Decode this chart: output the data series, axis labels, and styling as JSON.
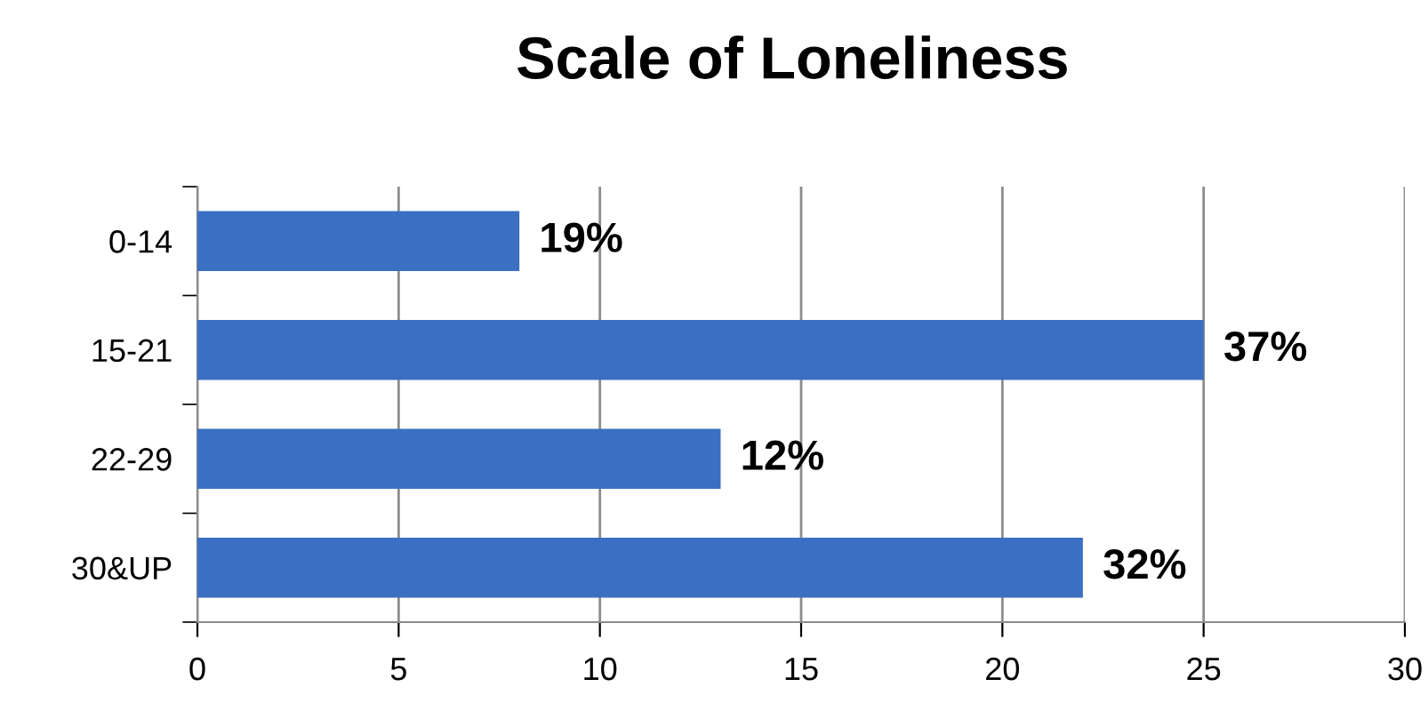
{
  "chart_data": {
    "type": "bar",
    "orientation": "horizontal",
    "title": "Scale of Loneliness",
    "categories": [
      "0-14",
      "15-21",
      "22-29",
      "30&UP"
    ],
    "values": [
      8,
      25,
      13,
      22
    ],
    "annotations": [
      {
        "text": "19%",
        "x": 8,
        "y": "0-14"
      },
      {
        "text": "37%",
        "x": 25,
        "y": "15-21"
      },
      {
        "text": "12%",
        "x": 13,
        "y": "22-29"
      },
      {
        "text": "32%",
        "x": 22,
        "y": "30&UP"
      }
    ],
    "color": "#3b6fc1",
    "xlim": [
      0,
      30
    ],
    "xticks": [
      0,
      5,
      10,
      15,
      20,
      25,
      30
    ],
    "grid": "x",
    "legend": false
  }
}
